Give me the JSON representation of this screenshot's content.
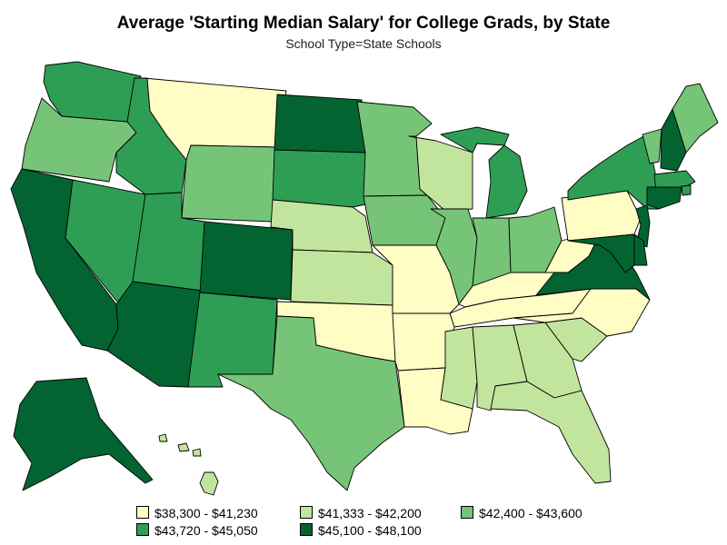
{
  "title": "Average 'Starting Median Salary' for College Grads, by State",
  "subtitle": "School Type=State Schools",
  "palette": {
    "bin1": "#fffcc4",
    "bin2": "#c2e59e",
    "bin3": "#76c478",
    "bin4": "#2f9e55",
    "bin5": "#036432"
  },
  "legend": [
    {
      "bin": "bin1",
      "label": "$38,300 - $41,230"
    },
    {
      "bin": "bin2",
      "label": "$41,333 - $42,200"
    },
    {
      "bin": "bin3",
      "label": "$42,400 - $43,600"
    },
    {
      "bin": "bin4",
      "label": "$43,720 - $45,050"
    },
    {
      "bin": "bin5",
      "label": "$45,100 - $48,100"
    }
  ],
  "states": {
    "WA": "bin4",
    "OR": "bin3",
    "CA": "bin5",
    "NV": "bin4",
    "ID": "bin4",
    "MT": "bin1",
    "WY": "bin3",
    "UT": "bin4",
    "AZ": "bin5",
    "CO": "bin5",
    "NM": "bin4",
    "ND": "bin5",
    "SD": "bin4",
    "NE": "bin2",
    "KS": "bin2",
    "OK": "bin1",
    "TX": "bin3",
    "MN": "bin3",
    "IA": "bin3",
    "MO": "bin1",
    "AR": "bin1",
    "LA": "bin1",
    "WI": "bin2",
    "IL": "bin3",
    "MI": "bin4",
    "IN": "bin3",
    "OH": "bin3",
    "KY": "bin1",
    "TN": "bin1",
    "MS": "bin2",
    "AL": "bin2",
    "GA": "bin2",
    "FL": "bin2",
    "SC": "bin2",
    "NC": "bin1",
    "VA": "bin5",
    "WV": "bin1",
    "PA": "bin1",
    "NY": "bin4",
    "VT": "bin3",
    "NH": "bin5",
    "ME": "bin3",
    "MA": "bin4",
    "RI": "bin4",
    "CT": "bin5",
    "NJ": "bin5",
    "DE": "bin5",
    "MD": "bin5",
    "AK": "bin5",
    "HI": "bin2"
  }
}
